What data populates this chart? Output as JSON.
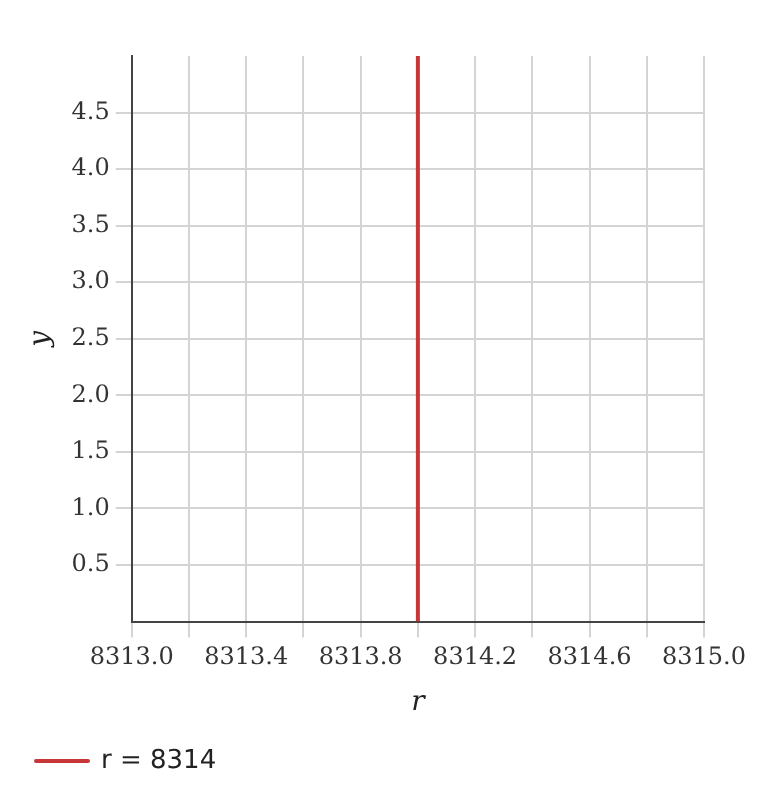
{
  "chart_data": {
    "type": "line",
    "xlabel": "r",
    "ylabel": "y",
    "series": [
      {
        "name": "r = 8314",
        "color": "#c83737",
        "x": [
          8314,
          8314
        ],
        "values": [
          0,
          5
        ]
      }
    ],
    "xlim": [
      8313,
      8315
    ],
    "ylim": [
      0,
      5
    ],
    "xticks": [
      {
        "value": 8313,
        "label": "8313.0"
      },
      {
        "value": 8313.2,
        "label": null
      },
      {
        "value": 8313.4,
        "label": "8313.4"
      },
      {
        "value": 8313.6,
        "label": null
      },
      {
        "value": 8313.8,
        "label": "8313.8"
      },
      {
        "value": 8314,
        "label": null
      },
      {
        "value": 8314.2,
        "label": "8314.2"
      },
      {
        "value": 8314.4,
        "label": null
      },
      {
        "value": 8314.6,
        "label": "8314.6"
      },
      {
        "value": 8314.8,
        "label": null
      },
      {
        "value": 8315,
        "label": "8315.0"
      }
    ],
    "yticks": [
      {
        "value": 0.5,
        "label": "0.5"
      },
      {
        "value": 1,
        "label": "1.0"
      },
      {
        "value": 1.5,
        "label": "1.5"
      },
      {
        "value": 2,
        "label": "2.0"
      },
      {
        "value": 2.5,
        "label": "2.5"
      },
      {
        "value": 3,
        "label": "3.0"
      },
      {
        "value": 3.5,
        "label": "3.5"
      },
      {
        "value": 4,
        "label": "4.0"
      },
      {
        "value": 4.5,
        "label": "4.5"
      }
    ],
    "grid": true,
    "legend": "bottom left",
    "marker": "none",
    "line_style": "solid"
  }
}
